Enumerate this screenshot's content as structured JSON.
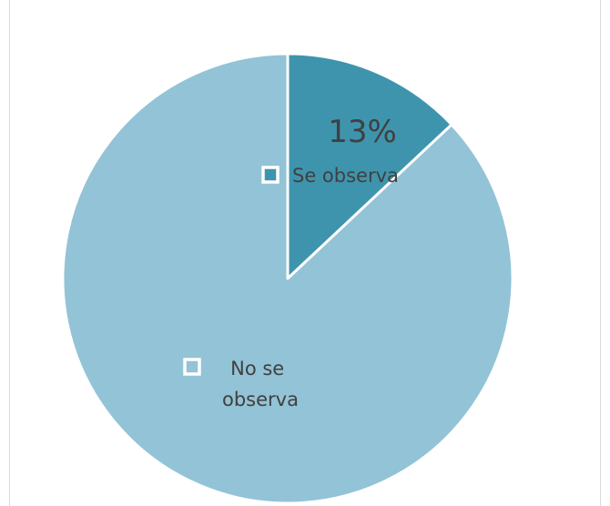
{
  "chart_data": {
    "type": "pie",
    "title": "",
    "slices": [
      {
        "label": "Se observa",
        "value": 13,
        "data_label": "13%",
        "color": "#3f94ad"
      },
      {
        "label": "No se observa",
        "label_lines": [
          "No se",
          "observa"
        ],
        "value": 87,
        "data_label": "",
        "color": "#93c3d6"
      }
    ],
    "start_angle_deg": 0,
    "direction": "clockwise",
    "legend_placement": "inside"
  }
}
